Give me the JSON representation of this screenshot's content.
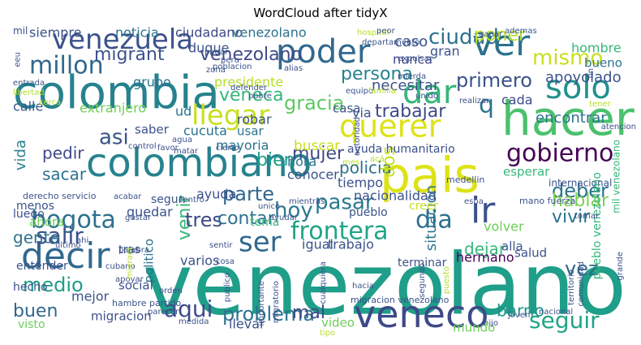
{
  "chart_data": {
    "type": "wordcloud",
    "title": "WordCloud after tidyX",
    "palette": [
      "#440154",
      "#482878",
      "#3e4989",
      "#31688e",
      "#26828e",
      "#1f9e89",
      "#35b779",
      "#6ece58",
      "#b5de2b",
      "#fde725"
    ],
    "words": [
      {
        "text": "venezolano",
        "weight": 1.0,
        "color": "#1f9e89"
      },
      {
        "text": "colombia",
        "weight": 0.55,
        "color": "#26828e"
      },
      {
        "text": "pais",
        "weight": 0.6,
        "color": "#dde318"
      },
      {
        "text": "hacer",
        "weight": 0.55,
        "color": "#4ac16d"
      },
      {
        "text": "colombiano",
        "weight": 0.5,
        "color": "#26828e"
      },
      {
        "text": "venezuela",
        "weight": 0.35,
        "color": "#3b528b"
      },
      {
        "text": "poder",
        "weight": 0.4,
        "color": "#31688e"
      },
      {
        "text": "ver",
        "weight": 0.42,
        "color": "#2c728e"
      },
      {
        "text": "veneco",
        "weight": 0.42,
        "color": "#3e4989"
      },
      {
        "text": "decir",
        "weight": 0.4,
        "color": "#31688e"
      },
      {
        "text": "ser",
        "weight": 0.35,
        "color": "#31688e"
      },
      {
        "text": "solo",
        "weight": 0.3,
        "color": "#21918c"
      },
      {
        "text": "ir",
        "weight": 0.32,
        "color": "#3b528b"
      },
      {
        "text": "querer",
        "weight": 0.3,
        "color": "#dde318"
      },
      {
        "text": "dar",
        "weight": 0.3,
        "color": "#35b779"
      },
      {
        "text": "llegar",
        "weight": 0.28,
        "color": "#c8e020"
      },
      {
        "text": "gobierno",
        "weight": 0.22,
        "color": "#440154"
      },
      {
        "text": "mismo",
        "weight": 0.2,
        "color": "#c8e020"
      },
      {
        "text": "millon",
        "weight": 0.2,
        "color": "#31688e"
      },
      {
        "text": "dia",
        "weight": 0.25,
        "color": "#2c728e"
      },
      {
        "text": "frontera",
        "weight": 0.22,
        "color": "#20a486"
      },
      {
        "text": "bogota",
        "weight": 0.2,
        "color": "#2c728e"
      },
      {
        "text": "salir",
        "weight": 0.2,
        "color": "#3b528b"
      },
      {
        "text": "aqui",
        "weight": 0.2,
        "color": "#3e4989"
      },
      {
        "text": "seguir",
        "weight": 0.2,
        "color": "#20a486"
      },
      {
        "text": "pasar",
        "weight": 0.2,
        "color": "#2a788e"
      },
      {
        "text": "ciudad",
        "weight": 0.18,
        "color": "#2c728e"
      },
      {
        "text": "primero",
        "weight": 0.18,
        "color": "#3b528b"
      },
      {
        "text": "gracia",
        "weight": 0.18,
        "color": "#5ec962"
      },
      {
        "text": "persona",
        "weight": 0.16,
        "color": "#26828e"
      },
      {
        "text": "trabajar",
        "weight": 0.15,
        "color": "#3e4989"
      },
      {
        "text": "asi",
        "weight": 0.2,
        "color": "#3b528b"
      },
      {
        "text": "hoy",
        "weight": 0.18,
        "color": "#2a788e"
      },
      {
        "text": "parte",
        "weight": 0.17,
        "color": "#31688e"
      },
      {
        "text": "deber",
        "weight": 0.18,
        "color": "#2c728e"
      },
      {
        "text": "vivir",
        "weight": 0.16,
        "color": "#2c728e"
      },
      {
        "text": "hablar",
        "weight": 0.16,
        "color": "#7ad151"
      },
      {
        "text": "medio",
        "weight": 0.18,
        "color": "#1f9e89"
      },
      {
        "text": "buen",
        "weight": 0.18,
        "color": "#31688e"
      },
      {
        "text": "problema",
        "weight": 0.16,
        "color": "#2c728e"
      },
      {
        "text": "vez",
        "weight": 0.18,
        "color": "#31688e"
      },
      {
        "text": "mal",
        "weight": 0.14,
        "color": "#3e4989"
      },
      {
        "text": "barrio",
        "weight": 0.13,
        "color": "#21918c"
      },
      {
        "text": "venir",
        "weight": 0.17,
        "color": "#35b779"
      },
      {
        "text": "tres",
        "weight": 0.16,
        "color": "#3e4989"
      },
      {
        "text": "contar",
        "weight": 0.14,
        "color": "#2c728e"
      },
      {
        "text": "mujer",
        "weight": 0.14,
        "color": "#3e4989"
      },
      {
        "text": "policia",
        "weight": 0.13,
        "color": "#2c728e"
      },
      {
        "text": "bien",
        "weight": 0.14,
        "color": "#1f9e89"
      },
      {
        "text": "veneca",
        "weight": 0.14,
        "color": "#35b779"
      },
      {
        "text": "pedir",
        "weight": 0.13,
        "color": "#3e4989"
      },
      {
        "text": "sacar",
        "weight": 0.12,
        "color": "#2c728e"
      },
      {
        "text": "gente",
        "weight": 0.13,
        "color": "#2c728e"
      },
      {
        "text": "dejar",
        "weight": 0.13,
        "color": "#35b779"
      },
      {
        "text": "poner",
        "weight": 0.13,
        "color": "#b5de2b"
      },
      {
        "text": "migrant",
        "weight": 0.12,
        "color": "#3b528b"
      },
      {
        "text": "venezolano",
        "weight": 0.12,
        "color": "#3e4989"
      },
      {
        "text": "q",
        "weight": 0.2,
        "color": "#2c728e"
      },
      {
        "text": "dos",
        "weight": 0.14,
        "color": "#c8e020"
      },
      {
        "text": "situacion",
        "weight": 0.1,
        "color": "#2c728e"
      },
      {
        "text": "vida",
        "weight": 0.12,
        "color": "#26828e"
      },
      {
        "text": "apoyolado",
        "weight": 0.1,
        "color": "#3b528b"
      },
      {
        "text": "encontrar",
        "weight": 0.1,
        "color": "#2c728e"
      },
      {
        "text": "cada",
        "weight": 0.1,
        "color": "#3e4989"
      },
      {
        "text": "necesitar",
        "weight": 0.1,
        "color": "#3b528b"
      },
      {
        "text": "nunca",
        "weight": 0.09,
        "color": "#3e4989"
      },
      {
        "text": "gran",
        "weight": 0.09,
        "color": "#3b528b"
      },
      {
        "text": "caso",
        "weight": 0.1,
        "color": "#3b528b"
      },
      {
        "text": "bueno",
        "weight": 0.08,
        "color": "#2c728e"
      },
      {
        "text": "hombre",
        "weight": 0.08,
        "color": "#35b779"
      },
      {
        "text": "siempre",
        "weight": 0.09,
        "color": "#3b528b"
      },
      {
        "text": "noticia",
        "weight": 0.09,
        "color": "#2c728e"
      },
      {
        "text": "ciudadano",
        "weight": 0.09,
        "color": "#3e4989"
      },
      {
        "text": "venezolano",
        "weight": 0.09,
        "color": "#2c728e"
      },
      {
        "text": "duque",
        "weight": 0.09,
        "color": "#3b528b"
      },
      {
        "text": "presidente",
        "weight": 0.09,
        "color": "#b5de2b"
      },
      {
        "text": "grupo",
        "weight": 0.09,
        "color": "#2c728e"
      },
      {
        "text": "extranjero",
        "weight": 0.09,
        "color": "#6ece58"
      },
      {
        "text": "calle",
        "weight": 0.09,
        "color": "#3b528b"
      },
      {
        "text": "ud",
        "weight": 0.09,
        "color": "#2c728e"
      },
      {
        "text": "casa",
        "weight": 0.08,
        "color": "#3b528b"
      },
      {
        "text": "via",
        "weight": 0.08,
        "color": "#3b528b"
      },
      {
        "text": "robar",
        "weight": 0.08,
        "color": "#3b528b"
      },
      {
        "text": "usar",
        "weight": 0.08,
        "color": "#2c728e"
      },
      {
        "text": "saber",
        "weight": 0.08,
        "color": "#3b528b"
      },
      {
        "text": "cucuta",
        "weight": 0.08,
        "color": "#2c728e"
      },
      {
        "text": "mayoria",
        "weight": 0.08,
        "color": "#2c728e"
      },
      {
        "text": "buscar",
        "weight": 0.09,
        "color": "#c8e020"
      },
      {
        "text": "ayuda humanitario",
        "weight": 0.06,
        "color": "#3b528b"
      },
      {
        "text": "conocer",
        "weight": 0.08,
        "color": "#3b528b"
      },
      {
        "text": "hora",
        "weight": 0.08,
        "color": "#2c728e"
      },
      {
        "text": "tiempo",
        "weight": 0.08,
        "color": "#3b528b"
      },
      {
        "text": "esperar",
        "weight": 0.08,
        "color": "#35b779"
      },
      {
        "text": "internacional",
        "weight": 0.05,
        "color": "#3b528b"
      },
      {
        "text": "nacionalidad",
        "weight": 0.08,
        "color": "#3b528b"
      },
      {
        "text": "menos",
        "weight": 0.07,
        "color": "#3b528b"
      },
      {
        "text": "segun",
        "weight": 0.07,
        "color": "#3b528b"
      },
      {
        "text": "ayuda",
        "weight": 0.08,
        "color": "#3b528b"
      },
      {
        "text": "quedar",
        "weight": 0.08,
        "color": "#3b528b"
      },
      {
        "text": "tema",
        "weight": 0.07,
        "color": "#35b779"
      },
      {
        "text": "luego",
        "weight": 0.07,
        "color": "#3b528b"
      },
      {
        "text": "ahora",
        "weight": 0.08,
        "color": "#6ece58"
      },
      {
        "text": "varios",
        "weight": 0.08,
        "color": "#3b528b"
      },
      {
        "text": "politico",
        "weight": 0.07,
        "color": "#2c728e"
      },
      {
        "text": "pueblo",
        "weight": 0.07,
        "color": "#3b528b"
      },
      {
        "text": "creer",
        "weight": 0.07,
        "color": "#c8e020"
      },
      {
        "text": "volver",
        "weight": 0.08,
        "color": "#6ece58"
      },
      {
        "text": "igual",
        "weight": 0.08,
        "color": "#3b528b"
      },
      {
        "text": "trabajo",
        "weight": 0.08,
        "color": "#3b528b"
      },
      {
        "text": "hermano",
        "weight": 0.08,
        "color": "#440154"
      },
      {
        "text": "alla",
        "weight": 0.08,
        "color": "#3b528b"
      },
      {
        "text": "salud",
        "weight": 0.08,
        "color": "#3b528b"
      },
      {
        "text": "terminar",
        "weight": 0.07,
        "color": "#3b528b"
      },
      {
        "text": "entender",
        "weight": 0.07,
        "color": "#3b528b"
      },
      {
        "text": "tras",
        "weight": 0.07,
        "color": "#3b528b"
      },
      {
        "text": "social",
        "weight": 0.08,
        "color": "#3b528b"
      },
      {
        "text": "hecho",
        "weight": 0.07,
        "color": "#3b528b"
      },
      {
        "text": "mejor",
        "weight": 0.09,
        "color": "#3b528b"
      },
      {
        "text": "migracion",
        "weight": 0.08,
        "color": "#3b528b"
      },
      {
        "text": "visto",
        "weight": 0.07,
        "color": "#6ece58"
      },
      {
        "text": "llevar",
        "weight": 0.08,
        "color": "#3b528b"
      },
      {
        "text": "video",
        "weight": 0.07,
        "color": "#6ece58"
      },
      {
        "text": "mundo",
        "weight": 0.07,
        "color": "#6ece58"
      },
      {
        "text": "pueblo venezolano",
        "weight": 0.07,
        "color": "#35b779"
      },
      {
        "text": "mil venezolano",
        "weight": 0.06,
        "color": "#35b779"
      },
      {
        "text": "migracion venezolano",
        "weight": 0.04,
        "color": "#3b528b"
      },
      {
        "text": "hambre partido",
        "weight": 0.04,
        "color": "#3b528b"
      },
      {
        "text": "derecho servicio",
        "weight": 0.04,
        "color": "#3b528b"
      },
      {
        "text": "mano fuerza",
        "weight": 0.04,
        "color": "#3b528b"
      },
      {
        "text": "medellin",
        "weight": 0.04,
        "color": "#3b528b"
      },
      {
        "text": "atencion",
        "weight": 0.03,
        "color": "#3b528b"
      },
      {
        "text": "realizar",
        "weight": 0.03,
        "color": "#3b528b"
      },
      {
        "text": "autoridad",
        "weight": 0.03,
        "color": "#3b528b"
      },
      {
        "text": "hospital",
        "weight": 0.03,
        "color": "#b5de2b"
      },
      {
        "text": "pagar",
        "weight": 0.03,
        "color": "#3b528b"
      },
      {
        "text": "poblacion",
        "weight": 0.03,
        "color": "#3b528b"
      },
      {
        "text": "peru",
        "weight": 0.03,
        "color": "#3b528b"
      },
      {
        "text": "alias",
        "weight": 0.03,
        "color": "#3b528b"
      },
      {
        "text": "departamento",
        "weight": 0.03,
        "color": "#3b528b"
      },
      {
        "text": "expulsar",
        "weight": 0.03,
        "color": "#3b528b"
      },
      {
        "text": "zona",
        "weight": 0.03,
        "color": "#3b528b"
      },
      {
        "text": "mierda",
        "weight": 0.03,
        "color": "#3b528b"
      },
      {
        "text": "entrada",
        "weight": 0.03,
        "color": "#3b528b"
      },
      {
        "text": "libertad",
        "weight": 0.03,
        "color": "#b5de2b"
      },
      {
        "text": "matar",
        "weight": 0.03,
        "color": "#3b528b"
      },
      {
        "text": "defender",
        "weight": 0.03,
        "color": "#3b528b"
      },
      {
        "text": "pobre",
        "weight": 0.03,
        "color": "#3b528b"
      },
      {
        "text": "equipo",
        "weight": 0.03,
        "color": "#3b528b"
      },
      {
        "text": "familia",
        "weight": 0.03,
        "color": "#b5de2b"
      },
      {
        "text": "unido",
        "weight": 0.03,
        "color": "#3b528b"
      },
      {
        "text": "control",
        "weight": 0.03,
        "color": "#3b528b"
      },
      {
        "text": "agua",
        "weight": 0.03,
        "color": "#3b528b"
      },
      {
        "text": "cierto",
        "weight": 0.03,
        "color": "#3b528b"
      },
      {
        "text": "favor",
        "weight": 0.03,
        "color": "#3b528b"
      },
      {
        "text": "mes",
        "weight": 0.03,
        "color": "#b5de2b"
      },
      {
        "text": "acabar",
        "weight": 0.03,
        "color": "#3b528b"
      },
      {
        "text": "mientras",
        "weight": 0.03,
        "color": "#3b528b"
      },
      {
        "text": "centro",
        "weight": 0.03,
        "color": "#3b528b"
      },
      {
        "text": "gustar",
        "weight": 0.03,
        "color": "#3b528b"
      },
      {
        "text": "ultimo",
        "weight": 0.03,
        "color": "#3b528b"
      },
      {
        "text": "palabra",
        "weight": 0.03,
        "color": "#3b528b"
      },
      {
        "text": "sentir",
        "weight": 0.03,
        "color": "#3b528b"
      },
      {
        "text": "cosa",
        "weight": 0.03,
        "color": "#3b528b"
      },
      {
        "text": "cubano",
        "weight": 0.03,
        "color": "#3b528b"
      },
      {
        "text": "publico",
        "weight": 0.03,
        "color": "#3b528b"
      },
      {
        "text": "importante",
        "weight": 0.03,
        "color": "#3b528b"
      },
      {
        "text": "migratorio",
        "weight": 0.03,
        "color": "#3b528b"
      },
      {
        "text": "hacia",
        "weight": 0.03,
        "color": "#3b528b"
      },
      {
        "text": "orden",
        "weight": 0.03,
        "color": "#3b528b"
      },
      {
        "text": "parecer",
        "weight": 0.03,
        "color": "#3b528b"
      },
      {
        "text": "medida",
        "weight": 0.03,
        "color": "#3b528b"
      },
      {
        "text": "tipo",
        "weight": 0.03,
        "color": "#b5de2b"
      },
      {
        "text": "hijo",
        "weight": 0.03,
        "color": "#3b528b"
      },
      {
        "text": "joven",
        "weight": 0.03,
        "color": "#3b528b"
      },
      {
        "text": "nacional",
        "weight": 0.03,
        "color": "#3b528b"
      },
      {
        "text": "territorio",
        "weight": 0.03,
        "color": "#3b528b"
      },
      {
        "text": "comunidad",
        "weight": 0.03,
        "color": "#3b528b"
      },
      {
        "text": "grande",
        "weight": 0.03,
        "color": "#3b528b"
      },
      {
        "text": "cualquiera",
        "weight": 0.03,
        "color": "#3b528b"
      },
      {
        "text": "segundo",
        "weight": 0.03,
        "color": "#3b528b"
      },
      {
        "text": "puesto",
        "weight": 0.03,
        "color": "#b5de2b"
      },
      {
        "text": "tomar",
        "weight": 0.03,
        "color": "#3b528b"
      },
      {
        "text": "ayudar",
        "weight": 0.03,
        "color": "#3b528b"
      },
      {
        "text": "unico",
        "weight": 0.03,
        "color": "#3b528b"
      },
      {
        "text": "apoyar",
        "weight": 0.03,
        "color": "#3b528b"
      },
      {
        "text": "eeu",
        "weight": 0.03,
        "color": "#3b528b"
      },
      {
        "text": "cerca",
        "weight": 0.03,
        "color": "#b5de2b"
      },
      {
        "text": "espa",
        "weight": 0.03,
        "color": "#3b528b"
      },
      {
        "text": "ahi",
        "weight": 0.03,
        "color": "#3b528b"
      },
      {
        "text": "migrant",
        "weight": 0.03,
        "color": "#b5de2b"
      },
      {
        "text": "fin",
        "weight": 0.03,
        "color": "#3b528b"
      },
      {
        "text": "ademas",
        "weight": 0.03,
        "color": "#3b528b"
      },
      {
        "text": "ganar",
        "weight": 0.03,
        "color": "#3b528b"
      },
      {
        "text": "peor",
        "weight": 0.03,
        "color": "#3b528b"
      },
      {
        "text": "acá",
        "weight": 0.03,
        "color": "#b5de2b"
      },
      {
        "text": "tener",
        "weight": 0.03,
        "color": "#b5de2b"
      },
      {
        "text": "mil",
        "weight": 0.03,
        "color": "#3b528b"
      }
    ]
  }
}
